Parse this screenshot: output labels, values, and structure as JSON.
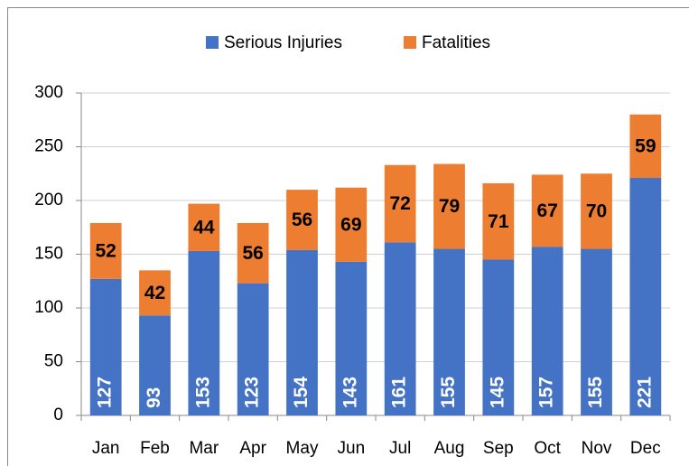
{
  "chart_data": {
    "type": "stacked_bar",
    "categories": [
      "Jan",
      "Feb",
      "Mar",
      "Apr",
      "May",
      "Jun",
      "Jul",
      "Aug",
      "Sep",
      "Oct",
      "Nov",
      "Dec"
    ],
    "series": [
      {
        "name": "Serious Injuries",
        "color": "#4472c4",
        "values": [
          127,
          93,
          153,
          123,
          154,
          143,
          161,
          155,
          145,
          157,
          155,
          221
        ]
      },
      {
        "name": "Fatalities",
        "color": "#ed7d31",
        "values": [
          52,
          42,
          44,
          56,
          56,
          69,
          72,
          79,
          71,
          67,
          70,
          59
        ]
      }
    ],
    "ylim": [
      0,
      300
    ],
    "yticks": [
      0,
      50,
      100,
      150,
      200,
      250,
      300
    ],
    "grid": true,
    "legend": "top"
  }
}
